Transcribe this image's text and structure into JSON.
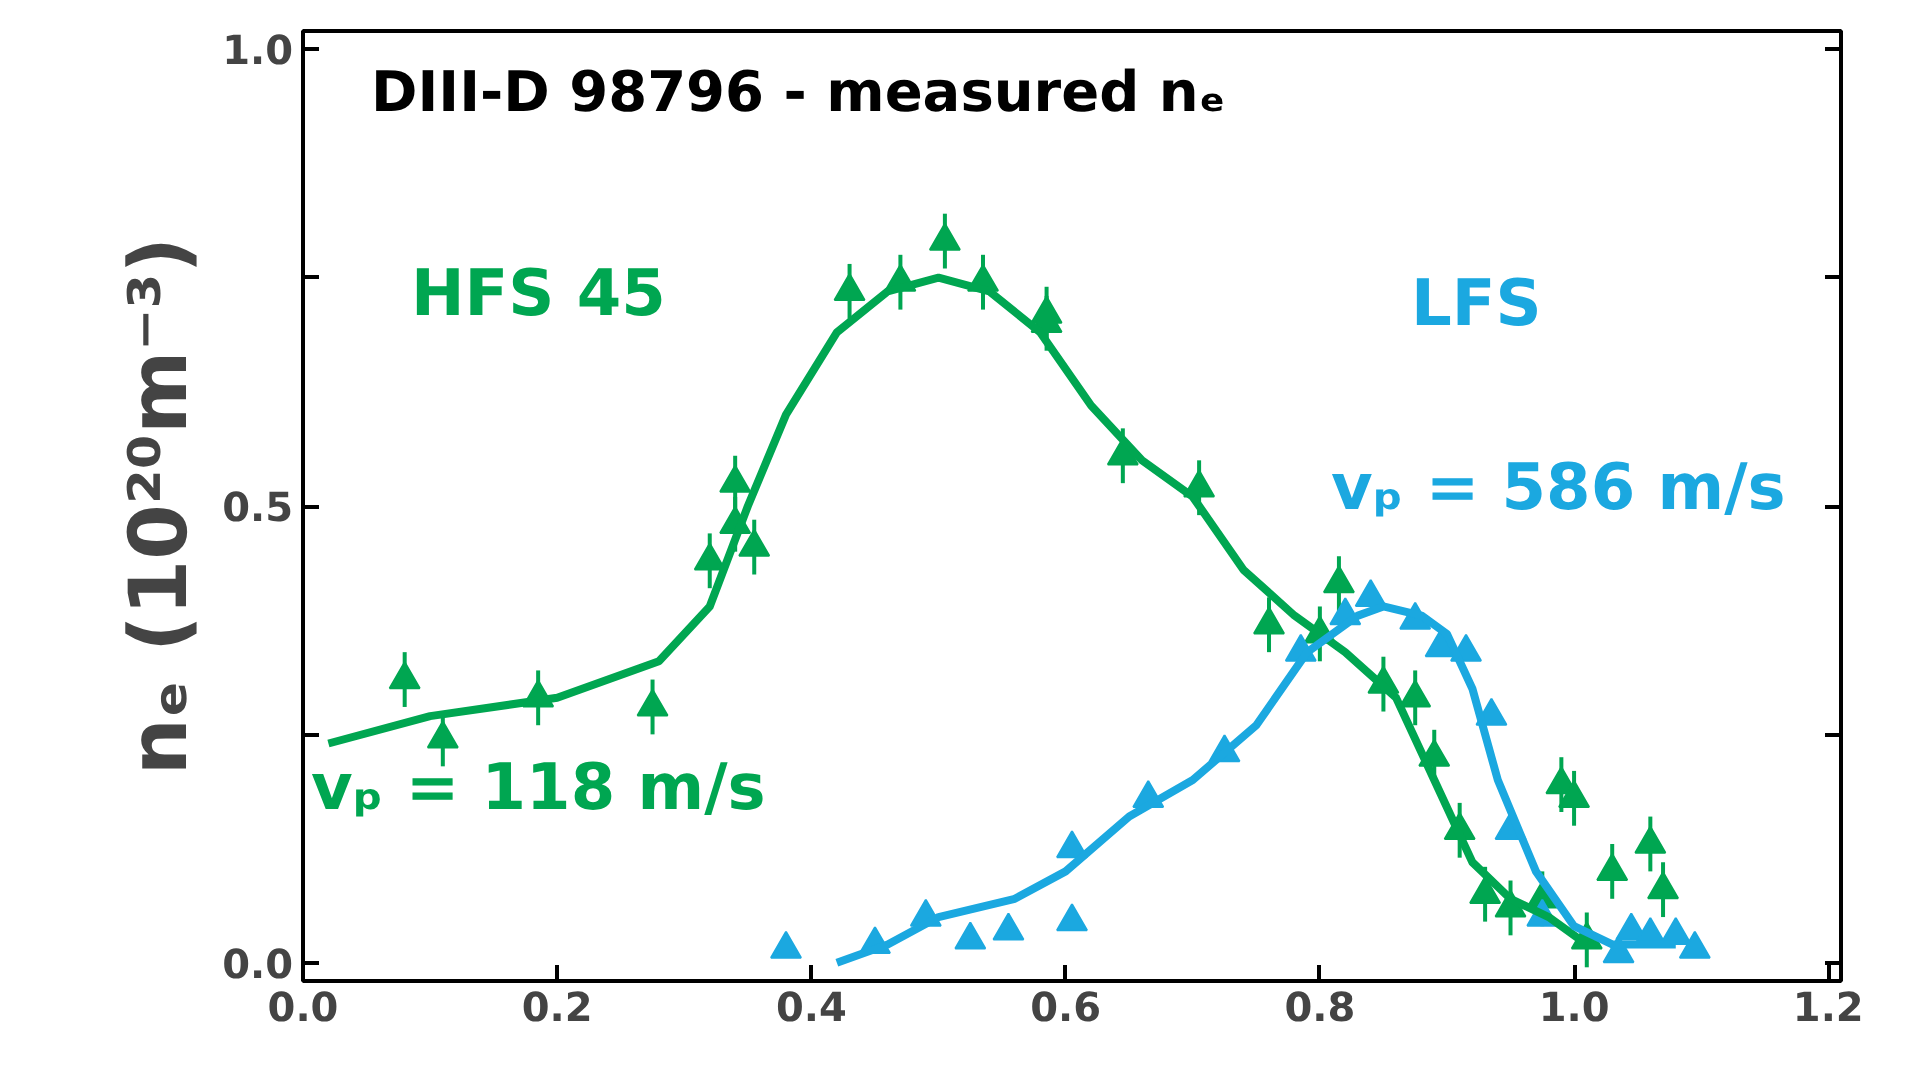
{
  "chart_data": {
    "type": "scatter",
    "title": "DIII-D 98796 - measured   nₑ",
    "ylabel": "nₑ (10²⁰m⁻³)",
    "annotations": [
      "vₚ = 118 m/s",
      "vₚ = 586 m/s"
    ],
    "xlim": [
      0,
      1.21
    ],
    "ylim": [
      -0.02,
      1.02
    ],
    "xticks": [
      {
        "value": 0,
        "label": "0.0"
      },
      {
        "value": 0.2,
        "label": "0.2"
      },
      {
        "value": 0.4,
        "label": "0.4"
      },
      {
        "value": 0.6,
        "label": "0.6"
      },
      {
        "value": 0.8,
        "label": "0.8"
      },
      {
        "value": 1.0,
        "label": "1.0"
      },
      {
        "value": 1.2,
        "label": "1.2"
      }
    ],
    "yticks": [
      {
        "value": 0,
        "label": "0.0"
      },
      {
        "value": 0.25,
        "label": null
      },
      {
        "value": 0.5,
        "label": "0.5"
      },
      {
        "value": 0.75,
        "label": null
      },
      {
        "value": 1.0,
        "label": "1.0"
      }
    ],
    "grid": false,
    "legend": false,
    "marker": "triangle",
    "series": [
      {
        "color": "#00a651",
        "x": [
          0.08,
          0.11,
          0.185,
          0.275,
          0.34,
          0.43,
          0.585
        ],
        "values": [
          0.31,
          0.245,
          0.29,
          0.28,
          0.525,
          0.735,
          0.71
        ],
        "errors": [
          0.03,
          0.03,
          0.03,
          0.03,
          0.03,
          0.03,
          0.03
        ]
      },
      {
        "color": "#00a651",
        "x": [
          0.32,
          0.34,
          0.355,
          0.47,
          0.505,
          0.535,
          0.585,
          0.645,
          0.705,
          0.76,
          0.8,
          0.815,
          0.85,
          0.875,
          0.89,
          0.91,
          0.93,
          0.95,
          0.975,
          0.99,
          1.0,
          1.01,
          1.03,
          1.06,
          1.07
        ],
        "values": [
          0.44,
          0.48,
          0.455,
          0.745,
          0.79,
          0.745,
          0.7,
          0.555,
          0.52,
          0.37,
          0.36,
          0.415,
          0.305,
          0.29,
          0.225,
          0.145,
          0.075,
          0.06,
          0.07,
          0.195,
          0.18,
          0.025,
          0.1,
          0.13,
          0.08
        ],
        "errors": [
          0.03,
          0.03,
          0.03,
          0.03,
          0.03,
          0.03,
          0.03,
          0.03,
          0.03,
          0.03,
          0.03,
          0.03,
          0.03,
          0.03,
          0.03,
          0.03,
          0.03,
          0.03,
          0.03,
          0.03,
          0.03,
          0.03,
          0.03,
          0.03,
          0.03
        ]
      },
      {
        "color": "#1ba8e0",
        "x": [
          0.38,
          0.45,
          0.49,
          0.525,
          0.555,
          0.605,
          0.605,
          0.665,
          0.725,
          0.785,
          0.82,
          0.84,
          0.875,
          0.895,
          0.915,
          0.935,
          0.95,
          0.975,
          1.035,
          1.045,
          1.06,
          1.08,
          1.095
        ],
        "values": [
          0.015,
          0.02,
          0.05,
          0.025,
          0.035,
          0.045,
          0.125,
          0.18,
          0.23,
          0.34,
          0.38,
          0.4,
          0.375,
          0.345,
          0.34,
          0.27,
          0.145,
          0.05,
          0.01,
          0.035,
          0.03,
          0.03,
          0.015
        ]
      },
      {
        "type": "line",
        "marker": "none",
        "name": "HFS 45",
        "color": "#00a651",
        "x": [
          0.02,
          0.1,
          0.2,
          0.28,
          0.32,
          0.35,
          0.38,
          0.42,
          0.46,
          0.5,
          0.54,
          0.58,
          0.62,
          0.66,
          0.7,
          0.74,
          0.78,
          0.82,
          0.86,
          0.89,
          0.92,
          0.95,
          0.98,
          1.01
        ],
        "values": [
          0.24,
          0.27,
          0.29,
          0.33,
          0.39,
          0.5,
          0.6,
          0.69,
          0.735,
          0.75,
          0.735,
          0.69,
          0.61,
          0.55,
          0.51,
          0.43,
          0.38,
          0.34,
          0.29,
          0.2,
          0.11,
          0.07,
          0.05,
          0.02
        ]
      },
      {
        "type": "line",
        "marker": "none",
        "name": "LFS",
        "color": "#1ba8e0",
        "x": [
          0.42,
          0.46,
          0.5,
          0.56,
          0.6,
          0.65,
          0.7,
          0.75,
          0.79,
          0.83,
          0.85,
          0.88,
          0.9,
          0.92,
          0.94,
          0.97,
          1.0,
          1.03,
          1.08
        ],
        "values": [
          0.0,
          0.02,
          0.05,
          0.07,
          0.1,
          0.16,
          0.2,
          0.26,
          0.34,
          0.38,
          0.39,
          0.38,
          0.36,
          0.3,
          0.2,
          0.1,
          0.04,
          0.02,
          0.02
        ]
      }
    ]
  }
}
